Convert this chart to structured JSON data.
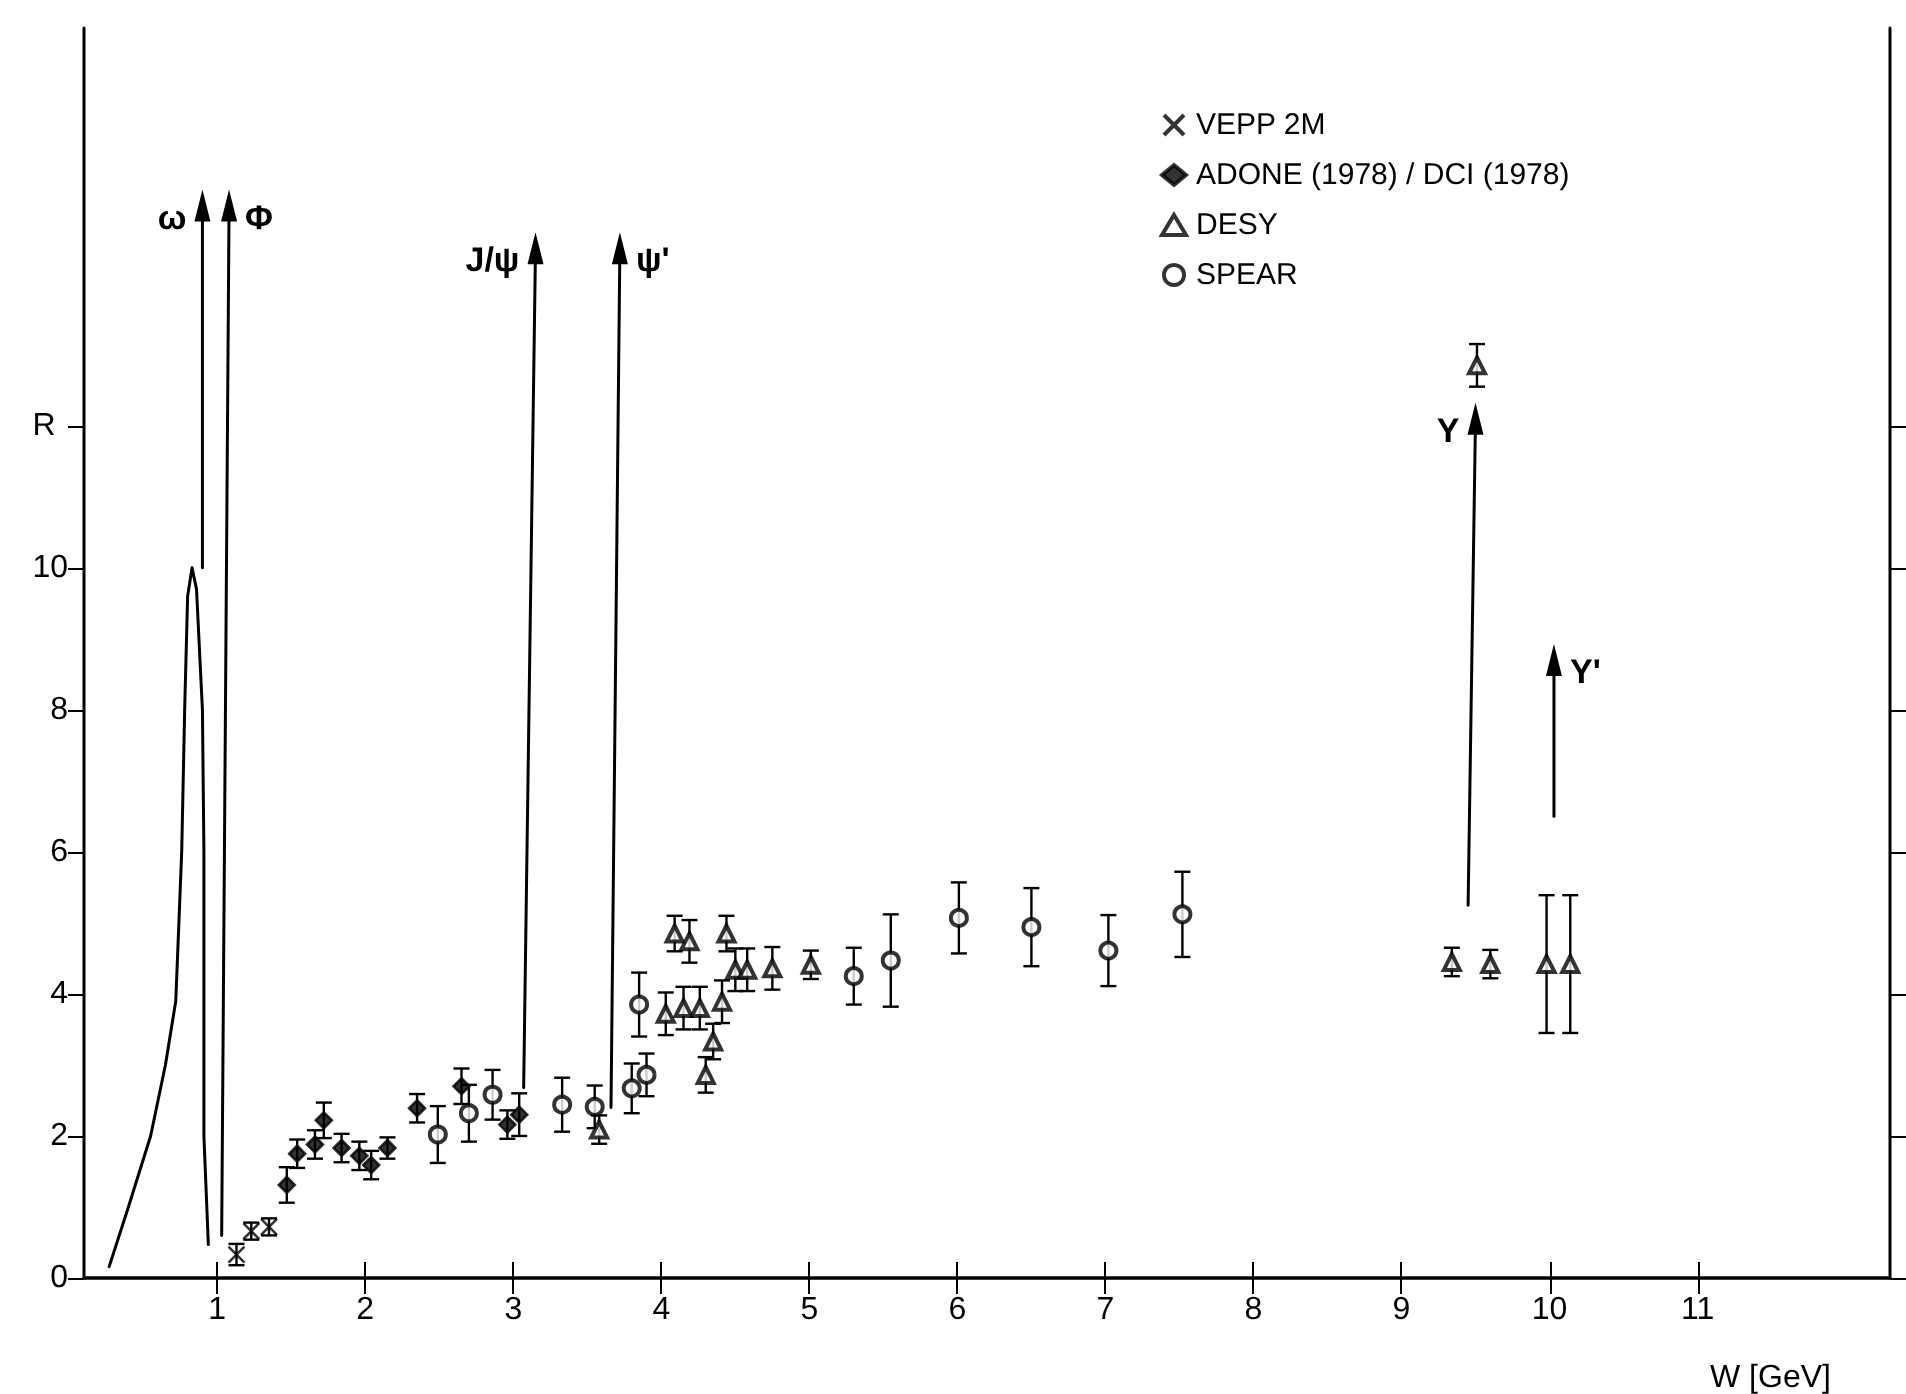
{
  "chart_data": {
    "type": "scatter",
    "xlabel": "W [GeV]",
    "ylabel": "R",
    "xlim": [
      0.1,
      12.3
    ],
    "ylim": [
      0,
      17.6
    ],
    "xticks": [
      1,
      2,
      3,
      4,
      5,
      6,
      7,
      8,
      9,
      10,
      11
    ],
    "yticks": [
      0,
      2,
      4,
      6,
      8,
      10,
      {
        "value": 12,
        "label": null
      }
    ],
    "grid": false,
    "legend": "top",
    "series": [
      {
        "name": "VEPP 2M",
        "marker": "cross",
        "color": "#000000",
        "x": [
          1.13,
          1.23,
          1.35
        ],
        "values": [
          0.33,
          0.66,
          0.72
        ],
        "errors": [
          0.15,
          0.12,
          0.12
        ]
      },
      {
        "name": "ADONE (1978) / DCI (1978)",
        "marker": "diamond",
        "color": "#000000",
        "x": [
          1.47,
          1.54,
          1.66,
          1.72,
          1.84,
          1.96,
          2.04,
          2.15,
          2.35,
          2.65,
          2.96,
          3.04
        ],
        "values": [
          1.31,
          1.75,
          1.88,
          2.22,
          1.83,
          1.72,
          1.59,
          1.83,
          2.39,
          2.7,
          2.16,
          2.3
        ],
        "errors": [
          0.25,
          0.2,
          0.2,
          0.25,
          0.2,
          0.2,
          0.2,
          0.15,
          0.2,
          0.25,
          0.2,
          0.3
        ]
      },
      {
        "name": "DESY",
        "marker": "triangle",
        "color": "#000000",
        "x": [
          3.58,
          4.03,
          4.09,
          4.15,
          4.19,
          4.26,
          4.3,
          4.35,
          4.41,
          4.44,
          4.5,
          4.58,
          4.75,
          5.01,
          9.34,
          9.51,
          9.6,
          9.98,
          10.14
        ],
        "values": [
          2.09,
          3.72,
          4.85,
          3.8,
          4.74,
          3.8,
          2.86,
          3.33,
          3.89,
          4.85,
          4.34,
          4.34,
          4.36,
          4.41,
          4.45,
          12.85,
          4.42,
          4.42,
          4.42
        ],
        "errors": [
          0.2,
          0.3,
          0.25,
          0.3,
          0.3,
          0.3,
          0.25,
          0.25,
          0.3,
          0.25,
          0.3,
          0.3,
          0.3,
          0.2,
          0.2,
          0.3,
          0.2,
          0.97,
          0.97
        ]
      },
      {
        "name": "SPEAR",
        "marker": "circle",
        "color": "#000000",
        "x": [
          2.49,
          2.7,
          2.86,
          3.33,
          3.55,
          3.8,
          3.85,
          3.9,
          5.3,
          5.55,
          6.01,
          6.5,
          7.02,
          7.52
        ],
        "values": [
          2.02,
          2.32,
          2.58,
          2.44,
          2.41,
          2.67,
          3.85,
          2.86,
          4.25,
          4.47,
          5.07,
          4.94,
          4.61,
          5.12
        ],
        "errors": [
          0.4,
          0.4,
          0.35,
          0.38,
          0.3,
          0.35,
          0.45,
          0.3,
          0.4,
          0.65,
          0.5,
          0.55,
          0.5,
          0.6
        ]
      },
      {
        "type": "line",
        "marker": "none",
        "color": "#000000",
        "x": [
          0.27,
          0.4,
          0.55,
          0.65,
          0.72,
          0.76,
          0.78,
          0.8,
          0.83,
          0.86,
          0.9,
          0.91,
          0.91,
          0.91,
          0.94
        ],
        "values": [
          0.16,
          1.0,
          2.0,
          3.0,
          3.9,
          6,
          8,
          9.6,
          10.0,
          9.7,
          8,
          6,
          4,
          2,
          0.47
        ]
      },
      {
        "type": "line",
        "marker": "triangle",
        "color": "#000000",
        "x": [
          0.9,
          0.9
        ],
        "values": [
          10.0,
          15.1
        ]
      },
      {
        "type": "line",
        "marker": "triangle",
        "color": "#000000",
        "x": [
          1.03,
          1.08
        ],
        "values": [
          0.6,
          15.1
        ]
      },
      {
        "type": "line",
        "marker": "triangle",
        "color": "#000000",
        "x": [
          3.07,
          3.15
        ],
        "values": [
          2.68,
          14.5
        ]
      },
      {
        "type": "line",
        "marker": "triangle",
        "color": "#000000",
        "x": [
          3.66,
          3.72
        ],
        "values": [
          2.4,
          14.5
        ]
      },
      {
        "type": "line",
        "marker": "triangle",
        "color": "#000000",
        "x": [
          9.45,
          9.5
        ],
        "values": [
          5.25,
          12.1
        ]
      },
      {
        "type": "line",
        "marker": "triangle",
        "color": "#000000",
        "x": [
          10.03,
          10.03
        ],
        "values": [
          6.5,
          8.7
        ]
      }
    ],
    "annotations": [
      {
        "text": "ω",
        "x": 0.9,
        "y": 15.1
      },
      {
        "text": "Φ",
        "x": 1.08,
        "y": 15.1
      },
      {
        "text": "J/ψ",
        "x": 3.15,
        "y": 14.5
      },
      {
        "text": "ψ'",
        "x": 3.72,
        "y": 14.5
      },
      {
        "text": "Υ",
        "x": 9.5,
        "y": 12.1
      },
      {
        "text": "Υ'",
        "x": 10.03,
        "y": 8.7
      }
    ]
  }
}
